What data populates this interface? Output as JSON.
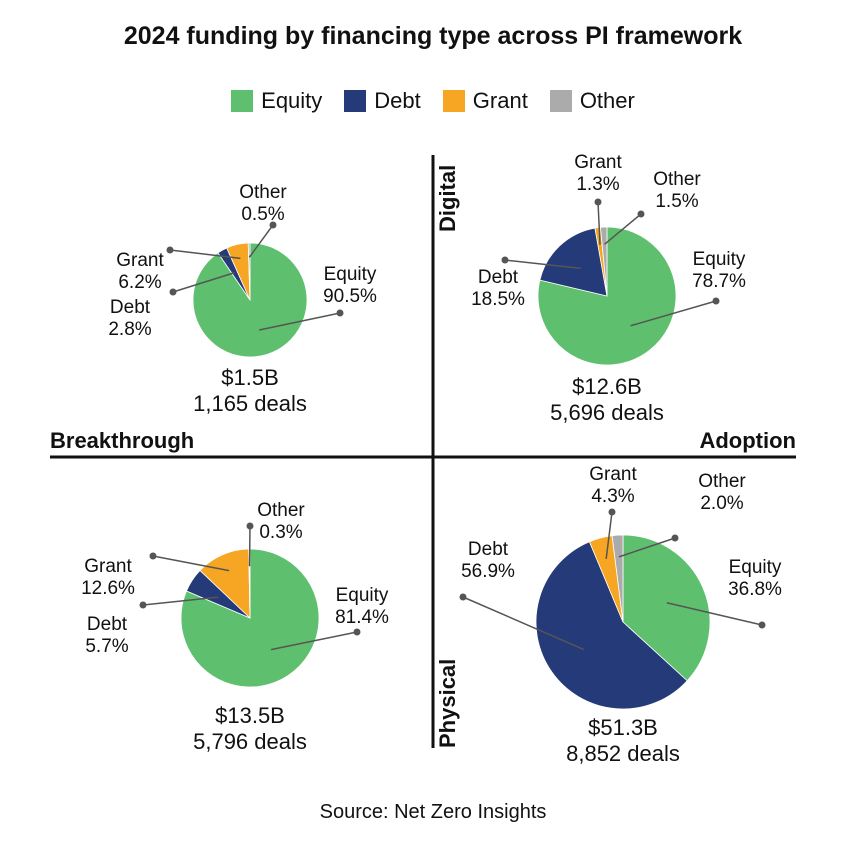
{
  "title": "2024 funding by financing type across PI framework",
  "source": "Source: Net Zero Insights",
  "axes": {
    "left": "Breakthrough",
    "right": "Adoption",
    "top": "Digital",
    "bottom": "Physical"
  },
  "legend": [
    {
      "label": "Equity",
      "color": "#5ec06f"
    },
    {
      "label": "Debt",
      "color": "#253a78"
    },
    {
      "label": "Grant",
      "color": "#f6a623"
    },
    {
      "label": "Other",
      "color": "#ababab"
    }
  ],
  "chart_data": [
    {
      "type": "pie",
      "quadrant": "Digital / Breakthrough",
      "total": "$1.5B",
      "deals": "1,165 deals",
      "slices": [
        {
          "name": "Equity",
          "value": 90.5,
          "label": "90.5%"
        },
        {
          "name": "Debt",
          "value": 2.8,
          "label": "2.8%"
        },
        {
          "name": "Grant",
          "value": 6.2,
          "label": "6.2%"
        },
        {
          "name": "Other",
          "value": 0.5,
          "label": "0.5%"
        }
      ]
    },
    {
      "type": "pie",
      "quadrant": "Digital / Adoption",
      "total": "$12.6B",
      "deals": "5,696 deals",
      "slices": [
        {
          "name": "Equity",
          "value": 78.7,
          "label": "78.7%"
        },
        {
          "name": "Debt",
          "value": 18.5,
          "label": "18.5%"
        },
        {
          "name": "Grant",
          "value": 1.3,
          "label": "1.3%"
        },
        {
          "name": "Other",
          "value": 1.5,
          "label": "1.5%"
        }
      ]
    },
    {
      "type": "pie",
      "quadrant": "Physical / Breakthrough",
      "total": "$13.5B",
      "deals": "5,796 deals",
      "slices": [
        {
          "name": "Equity",
          "value": 81.4,
          "label": "81.4%"
        },
        {
          "name": "Debt",
          "value": 5.7,
          "label": "5.7%"
        },
        {
          "name": "Grant",
          "value": 12.6,
          "label": "12.6%"
        },
        {
          "name": "Other",
          "value": 0.3,
          "label": "0.3%"
        }
      ]
    },
    {
      "type": "pie",
      "quadrant": "Physical / Adoption",
      "total": "$51.3B",
      "deals": "8,852 deals",
      "slices": [
        {
          "name": "Equity",
          "value": 36.8,
          "label": "36.8%"
        },
        {
          "name": "Debt",
          "value": 56.9,
          "label": "56.9%"
        },
        {
          "name": "Grant",
          "value": 4.3,
          "label": "4.3%"
        },
        {
          "name": "Other",
          "value": 2.0,
          "label": "2.0%"
        }
      ]
    }
  ]
}
